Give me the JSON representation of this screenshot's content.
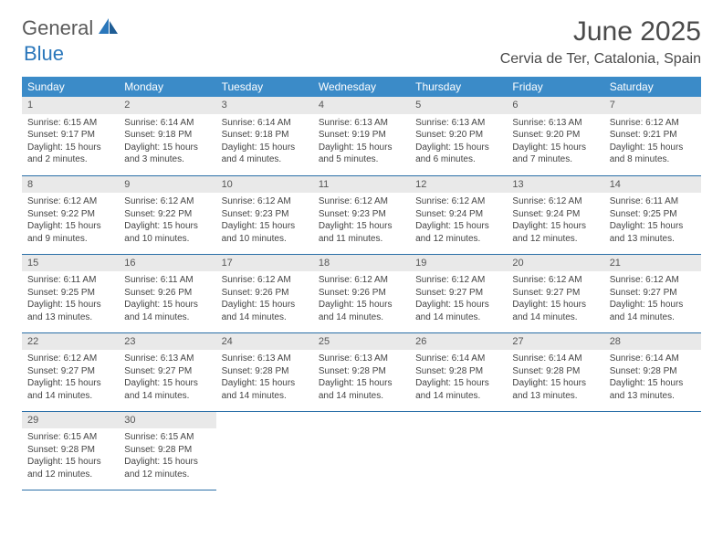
{
  "brand": {
    "part1": "General",
    "part2": "Blue"
  },
  "title": "June 2025",
  "location": "Cervia de Ter, Catalonia, Spain",
  "colors": {
    "header_bg": "#3b8bc8",
    "header_text": "#ffffff",
    "date_bar_bg": "#e9e9e9",
    "row_divider": "#2a6fa8",
    "brand_gray": "#5a5a5a",
    "brand_blue": "#2a77bb",
    "body_text": "#444444"
  },
  "dow": [
    "Sunday",
    "Monday",
    "Tuesday",
    "Wednesday",
    "Thursday",
    "Friday",
    "Saturday"
  ],
  "weeks": [
    [
      {
        "date": "1",
        "sunrise": "Sunrise: 6:15 AM",
        "sunset": "Sunset: 9:17 PM",
        "d1": "Daylight: 15 hours",
        "d2": "and 2 minutes."
      },
      {
        "date": "2",
        "sunrise": "Sunrise: 6:14 AM",
        "sunset": "Sunset: 9:18 PM",
        "d1": "Daylight: 15 hours",
        "d2": "and 3 minutes."
      },
      {
        "date": "3",
        "sunrise": "Sunrise: 6:14 AM",
        "sunset": "Sunset: 9:18 PM",
        "d1": "Daylight: 15 hours",
        "d2": "and 4 minutes."
      },
      {
        "date": "4",
        "sunrise": "Sunrise: 6:13 AM",
        "sunset": "Sunset: 9:19 PM",
        "d1": "Daylight: 15 hours",
        "d2": "and 5 minutes."
      },
      {
        "date": "5",
        "sunrise": "Sunrise: 6:13 AM",
        "sunset": "Sunset: 9:20 PM",
        "d1": "Daylight: 15 hours",
        "d2": "and 6 minutes."
      },
      {
        "date": "6",
        "sunrise": "Sunrise: 6:13 AM",
        "sunset": "Sunset: 9:20 PM",
        "d1": "Daylight: 15 hours",
        "d2": "and 7 minutes."
      },
      {
        "date": "7",
        "sunrise": "Sunrise: 6:12 AM",
        "sunset": "Sunset: 9:21 PM",
        "d1": "Daylight: 15 hours",
        "d2": "and 8 minutes."
      }
    ],
    [
      {
        "date": "8",
        "sunrise": "Sunrise: 6:12 AM",
        "sunset": "Sunset: 9:22 PM",
        "d1": "Daylight: 15 hours",
        "d2": "and 9 minutes."
      },
      {
        "date": "9",
        "sunrise": "Sunrise: 6:12 AM",
        "sunset": "Sunset: 9:22 PM",
        "d1": "Daylight: 15 hours",
        "d2": "and 10 minutes."
      },
      {
        "date": "10",
        "sunrise": "Sunrise: 6:12 AM",
        "sunset": "Sunset: 9:23 PM",
        "d1": "Daylight: 15 hours",
        "d2": "and 10 minutes."
      },
      {
        "date": "11",
        "sunrise": "Sunrise: 6:12 AM",
        "sunset": "Sunset: 9:23 PM",
        "d1": "Daylight: 15 hours",
        "d2": "and 11 minutes."
      },
      {
        "date": "12",
        "sunrise": "Sunrise: 6:12 AM",
        "sunset": "Sunset: 9:24 PM",
        "d1": "Daylight: 15 hours",
        "d2": "and 12 minutes."
      },
      {
        "date": "13",
        "sunrise": "Sunrise: 6:12 AM",
        "sunset": "Sunset: 9:24 PM",
        "d1": "Daylight: 15 hours",
        "d2": "and 12 minutes."
      },
      {
        "date": "14",
        "sunrise": "Sunrise: 6:11 AM",
        "sunset": "Sunset: 9:25 PM",
        "d1": "Daylight: 15 hours",
        "d2": "and 13 minutes."
      }
    ],
    [
      {
        "date": "15",
        "sunrise": "Sunrise: 6:11 AM",
        "sunset": "Sunset: 9:25 PM",
        "d1": "Daylight: 15 hours",
        "d2": "and 13 minutes."
      },
      {
        "date": "16",
        "sunrise": "Sunrise: 6:11 AM",
        "sunset": "Sunset: 9:26 PM",
        "d1": "Daylight: 15 hours",
        "d2": "and 14 minutes."
      },
      {
        "date": "17",
        "sunrise": "Sunrise: 6:12 AM",
        "sunset": "Sunset: 9:26 PM",
        "d1": "Daylight: 15 hours",
        "d2": "and 14 minutes."
      },
      {
        "date": "18",
        "sunrise": "Sunrise: 6:12 AM",
        "sunset": "Sunset: 9:26 PM",
        "d1": "Daylight: 15 hours",
        "d2": "and 14 minutes."
      },
      {
        "date": "19",
        "sunrise": "Sunrise: 6:12 AM",
        "sunset": "Sunset: 9:27 PM",
        "d1": "Daylight: 15 hours",
        "d2": "and 14 minutes."
      },
      {
        "date": "20",
        "sunrise": "Sunrise: 6:12 AM",
        "sunset": "Sunset: 9:27 PM",
        "d1": "Daylight: 15 hours",
        "d2": "and 14 minutes."
      },
      {
        "date": "21",
        "sunrise": "Sunrise: 6:12 AM",
        "sunset": "Sunset: 9:27 PM",
        "d1": "Daylight: 15 hours",
        "d2": "and 14 minutes."
      }
    ],
    [
      {
        "date": "22",
        "sunrise": "Sunrise: 6:12 AM",
        "sunset": "Sunset: 9:27 PM",
        "d1": "Daylight: 15 hours",
        "d2": "and 14 minutes."
      },
      {
        "date": "23",
        "sunrise": "Sunrise: 6:13 AM",
        "sunset": "Sunset: 9:27 PM",
        "d1": "Daylight: 15 hours",
        "d2": "and 14 minutes."
      },
      {
        "date": "24",
        "sunrise": "Sunrise: 6:13 AM",
        "sunset": "Sunset: 9:28 PM",
        "d1": "Daylight: 15 hours",
        "d2": "and 14 minutes."
      },
      {
        "date": "25",
        "sunrise": "Sunrise: 6:13 AM",
        "sunset": "Sunset: 9:28 PM",
        "d1": "Daylight: 15 hours",
        "d2": "and 14 minutes."
      },
      {
        "date": "26",
        "sunrise": "Sunrise: 6:14 AM",
        "sunset": "Sunset: 9:28 PM",
        "d1": "Daylight: 15 hours",
        "d2": "and 14 minutes."
      },
      {
        "date": "27",
        "sunrise": "Sunrise: 6:14 AM",
        "sunset": "Sunset: 9:28 PM",
        "d1": "Daylight: 15 hours",
        "d2": "and 13 minutes."
      },
      {
        "date": "28",
        "sunrise": "Sunrise: 6:14 AM",
        "sunset": "Sunset: 9:28 PM",
        "d1": "Daylight: 15 hours",
        "d2": "and 13 minutes."
      }
    ],
    [
      {
        "date": "29",
        "sunrise": "Sunrise: 6:15 AM",
        "sunset": "Sunset: 9:28 PM",
        "d1": "Daylight: 15 hours",
        "d2": "and 12 minutes."
      },
      {
        "date": "30",
        "sunrise": "Sunrise: 6:15 AM",
        "sunset": "Sunset: 9:28 PM",
        "d1": "Daylight: 15 hours",
        "d2": "and 12 minutes."
      },
      null,
      null,
      null,
      null,
      null
    ]
  ]
}
